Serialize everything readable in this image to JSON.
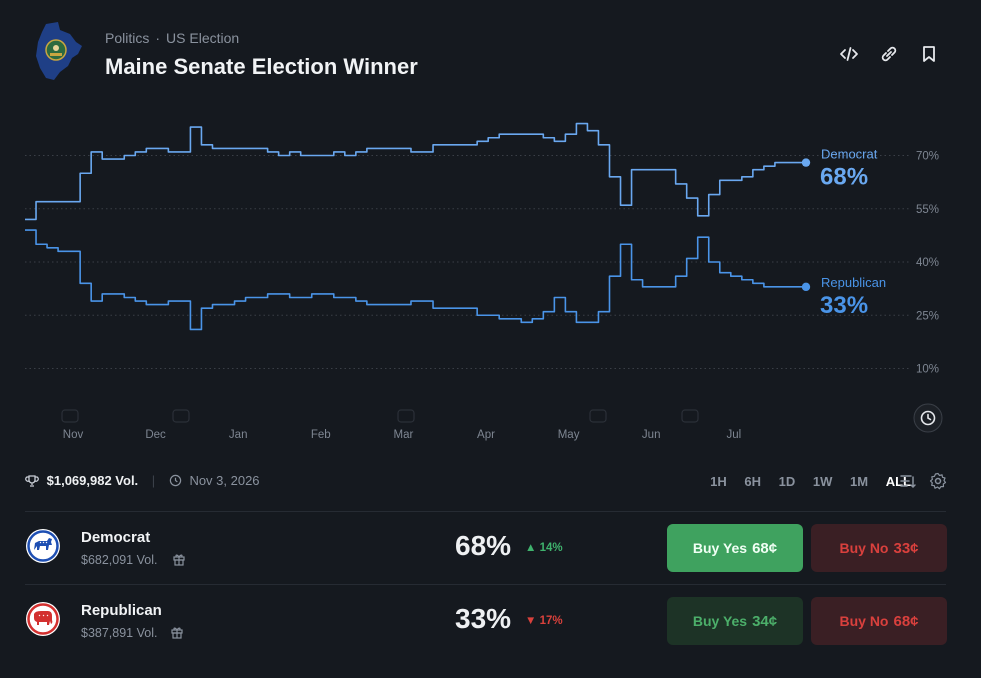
{
  "header": {
    "breadcrumb": [
      "Politics",
      "US Election"
    ],
    "title": "Maine Senate Election Winner"
  },
  "icons": {
    "embed": "code-icon",
    "link": "link-icon",
    "bookmark": "bookmark-icon",
    "history": "clock-icon",
    "sort": "sort-icon",
    "settings": "gear-icon"
  },
  "chart_data": {
    "type": "line",
    "x_ticks": [
      "Nov",
      "Dec",
      "Jan",
      "Feb",
      "Mar",
      "Apr",
      "May",
      "Jun",
      "Jul"
    ],
    "y_ticks": [
      "10%",
      "25%",
      "40%",
      "55%",
      "70%"
    ],
    "ylim": [
      0,
      80
    ],
    "grid": true,
    "series": [
      {
        "name": "Democrat",
        "color": "#6aa8f0",
        "label_value": "68%",
        "values": [
          52,
          57,
          57,
          57,
          57,
          65,
          71,
          69,
          69,
          70,
          71,
          72,
          72,
          71,
          71,
          78,
          73,
          72,
          72,
          72,
          72,
          72,
          71,
          70,
          71,
          70,
          70,
          70,
          71,
          70,
          71,
          72,
          72,
          72,
          72,
          71,
          71,
          73,
          73,
          73,
          73,
          74,
          75,
          76,
          76,
          76,
          76,
          75,
          74,
          76,
          79,
          77,
          73,
          64,
          56,
          66,
          66,
          66,
          66,
          62,
          58,
          53,
          59,
          63,
          63,
          64,
          66,
          67,
          68,
          68,
          68,
          68
        ]
      },
      {
        "name": "Republican",
        "color": "#4a94e8",
        "label_value": "33%",
        "values": [
          49,
          45,
          44,
          43,
          43,
          34,
          29,
          31,
          31,
          30,
          29,
          28,
          28,
          29,
          29,
          21,
          27,
          28,
          28,
          29,
          30,
          30,
          31,
          31,
          30,
          30,
          31,
          31,
          30,
          30,
          29,
          28,
          28,
          28,
          28,
          29,
          29,
          27,
          27,
          27,
          27,
          25,
          25,
          24,
          24,
          23,
          24,
          26,
          30,
          26,
          23,
          23,
          26,
          36,
          45,
          35,
          33,
          33,
          33,
          36,
          41,
          47,
          40,
          37,
          36,
          35,
          34,
          33,
          33,
          33,
          33,
          33
        ]
      }
    ]
  },
  "stats": {
    "volume": "$1,069,982 Vol.",
    "end_date": "Nov 3, 2026"
  },
  "ranges": [
    "1H",
    "6H",
    "1D",
    "1W",
    "1M",
    "ALL"
  ],
  "active_range": "ALL",
  "outcomes": [
    {
      "name": "Democrat",
      "volume": "$682,091 Vol.",
      "percent": "68%",
      "change": "14%",
      "direction": "up",
      "buy_yes_label": "Buy Yes",
      "buy_yes_price": "68¢",
      "buy_no_label": "Buy No",
      "buy_no_price": "33¢"
    },
    {
      "name": "Republican",
      "volume": "$387,891 Vol.",
      "percent": "33%",
      "change": "17%",
      "direction": "down",
      "buy_yes_label": "Buy Yes",
      "buy_yes_price": "34¢",
      "buy_no_label": "Buy No",
      "buy_no_price": "68¢"
    }
  ]
}
